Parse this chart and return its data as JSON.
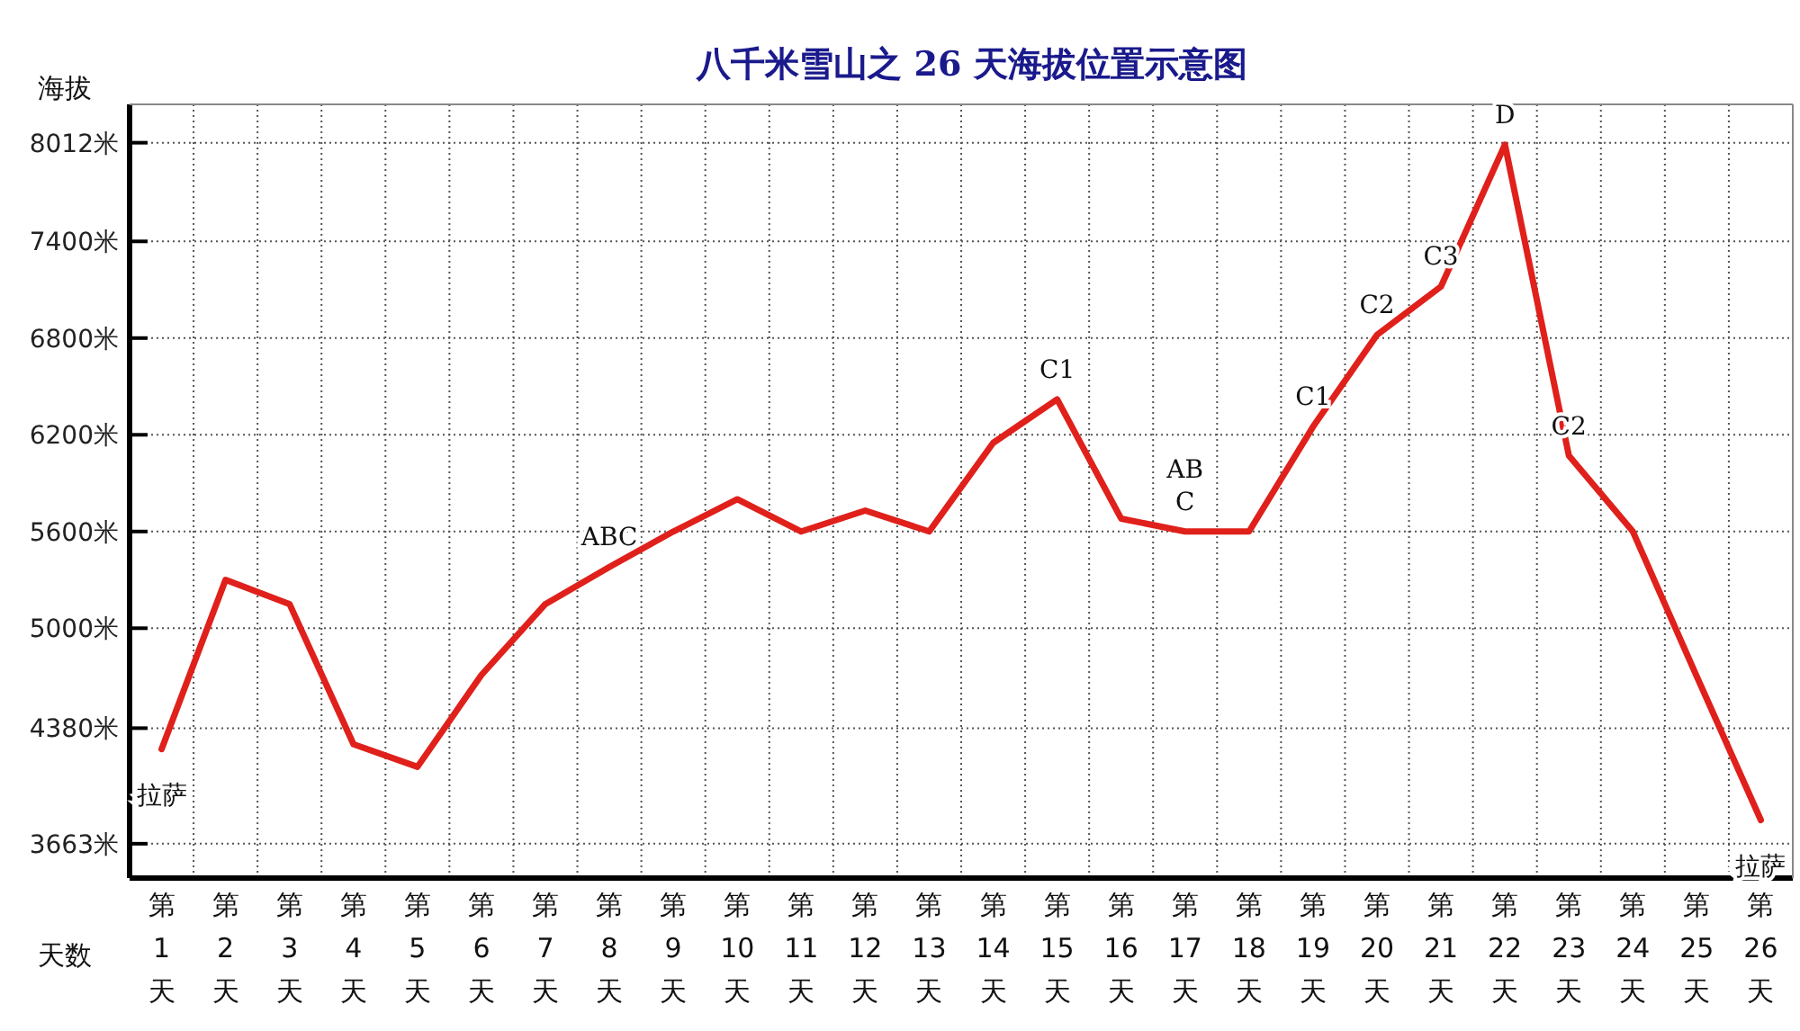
{
  "chart_data": {
    "type": "line",
    "title": "八千米雪山之 26 天海拔位置示意图",
    "xlabel": "天数",
    "ylabel": "海拔",
    "categories": [
      "第1天",
      "第2天",
      "第3天",
      "第4天",
      "第5天",
      "第6天",
      "第7天",
      "第8天",
      "第9天",
      "第10天",
      "第11天",
      "第12天",
      "第13天",
      "第14天",
      "第15天",
      "第16天",
      "第17天",
      "第18天",
      "第19天",
      "第20天",
      "第21天",
      "第22天",
      "第23天",
      "第24天",
      "第25天",
      "第26天"
    ],
    "ylim": [
      3450,
      8250
    ],
    "yticks": [
      {
        "value": 3663,
        "label": "3663米"
      },
      {
        "value": 4380,
        "label": "4380米"
      },
      {
        "value": 5000,
        "label": "5000米"
      },
      {
        "value": 5600,
        "label": "5600米"
      },
      {
        "value": 6200,
        "label": "6200米"
      },
      {
        "value": 6800,
        "label": "6800米"
      },
      {
        "value": 7400,
        "label": "7400米"
      },
      {
        "value": 8012,
        "label": "8012米"
      }
    ],
    "grid": true,
    "series": [
      {
        "color": "#e0201b",
        "values": [
          4250,
          5300,
          5150,
          4280,
          4140,
          4710,
          5150,
          5380,
          5600,
          5800,
          5600,
          5730,
          5600,
          6150,
          6420,
          5680,
          5600,
          5600,
          6250,
          6820,
          7120,
          8000,
          6070,
          5600,
          4700,
          3810
        ]
      }
    ],
    "annotations": [
      {
        "text": "拉萨",
        "x": "第1天",
        "y": 4250
      },
      {
        "text": "ABC",
        "x": "第8天",
        "y": 5380
      },
      {
        "text": "C1",
        "x": "第15天",
        "y": 6420
      },
      {
        "text": "AB\nC",
        "x": "第17天",
        "y": 5600
      },
      {
        "text": "C1",
        "x": "第19天",
        "y": 6250
      },
      {
        "text": "C2",
        "x": "第20天",
        "y": 6820
      },
      {
        "text": "C3",
        "x": "第21天",
        "y": 7120
      },
      {
        "text": "D",
        "x": "第22天",
        "y": 8000
      },
      {
        "text": "C2",
        "x": "第23天",
        "y": 6070
      },
      {
        "text": "拉萨",
        "x": "第26天",
        "y": 3810
      }
    ]
  }
}
